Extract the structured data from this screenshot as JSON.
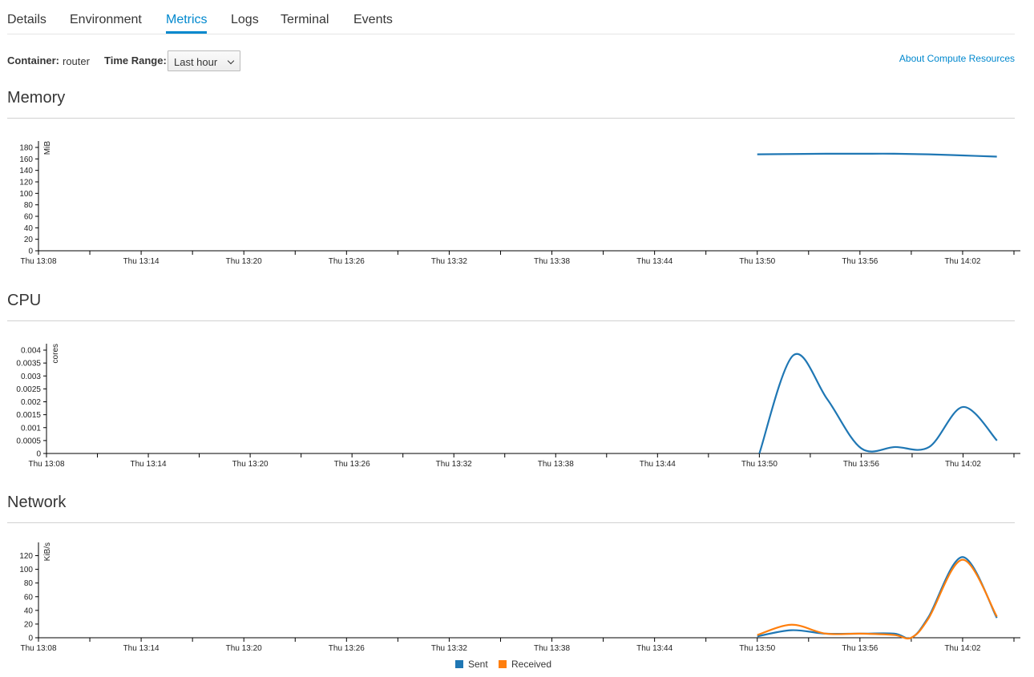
{
  "tabs": [
    {
      "label": "Details",
      "active": false
    },
    {
      "label": "Environment",
      "active": false
    },
    {
      "label": "Metrics",
      "active": true
    },
    {
      "label": "Logs",
      "active": false
    },
    {
      "label": "Terminal",
      "active": false
    },
    {
      "label": "Events",
      "active": false
    }
  ],
  "toolbar": {
    "container_label": "Container:",
    "container_value": "router",
    "time_range_label": "Time Range:",
    "time_range_value": "Last hour",
    "about_link": "About Compute Resources"
  },
  "sections": {
    "memory": {
      "title": "Memory"
    },
    "cpu": {
      "title": "CPU"
    },
    "network": {
      "title": "Network"
    }
  },
  "colors": {
    "accent": "#0088ce",
    "sent": "#1f77b4",
    "received": "#ff7f0e"
  },
  "chart_data": [
    {
      "type": "line",
      "title": "Memory",
      "ylabel": "MiB",
      "ylim": [
        0,
        180
      ],
      "yticks": [
        0,
        20,
        40,
        60,
        80,
        100,
        120,
        140,
        160,
        180
      ],
      "xticks": [
        "Thu 13:08",
        "Thu 13:14",
        "Thu 13:20",
        "Thu 13:26",
        "Thu 13:32",
        "Thu 13:38",
        "Thu 13:44",
        "Thu 13:50",
        "Thu 13:56",
        "Thu 14:02"
      ],
      "xlim": [
        "13:08",
        "14:05"
      ],
      "series": [
        {
          "color": "#1f77b4",
          "x": [
            "13:50",
            "13:52",
            "13:54",
            "13:56",
            "13:58",
            "14:00",
            "14:02",
            "14:04"
          ],
          "y": [
            168,
            168.5,
            169,
            169,
            169,
            168,
            166,
            164
          ]
        }
      ]
    },
    {
      "type": "line",
      "title": "CPU",
      "ylabel": "cores",
      "ylim": [
        0,
        0.004
      ],
      "yticks": [
        "0",
        "0.0005",
        "0.001",
        "0.0015",
        "0.002",
        "0.0025",
        "0.003",
        "0.0035",
        "0.004"
      ],
      "xticks": [
        "Thu 13:08",
        "Thu 13:14",
        "Thu 13:20",
        "Thu 13:26",
        "Thu 13:32",
        "Thu 13:38",
        "Thu 13:44",
        "Thu 13:50",
        "Thu 13:56",
        "Thu 14:02"
      ],
      "xlim": [
        "13:08",
        "14:05"
      ],
      "series": [
        {
          "color": "#1f77b4",
          "x": [
            "13:50",
            "13:52",
            "13:54",
            "13:56",
            "13:58",
            "14:00",
            "14:02",
            "14:04"
          ],
          "y": [
            0,
            0.0038,
            0.0021,
            0.0002,
            0.00025,
            0.00025,
            0.0018,
            0.0005
          ]
        }
      ]
    },
    {
      "type": "line",
      "title": "Network",
      "ylabel": "KiB/s",
      "ylim": [
        0,
        130
      ],
      "yticks": [
        0,
        20,
        40,
        60,
        80,
        100,
        120
      ],
      "xticks": [
        "Thu 13:08",
        "Thu 13:14",
        "Thu 13:20",
        "Thu 13:26",
        "Thu 13:32",
        "Thu 13:38",
        "Thu 13:44",
        "Thu 13:50",
        "Thu 13:56",
        "Thu 14:02"
      ],
      "xlim": [
        "13:08",
        "14:05"
      ],
      "legend": "bottom-center",
      "series": [
        {
          "name": "Sent",
          "color": "#1f77b4",
          "x": [
            "13:50",
            "13:52",
            "13:54",
            "13:56",
            "13:58",
            "13:59",
            "14:00",
            "14:02",
            "14:04"
          ],
          "y": [
            2,
            11,
            6,
            6,
            6,
            0,
            30,
            118,
            29
          ]
        },
        {
          "name": "Received",
          "color": "#ff7f0e",
          "x": [
            "13:50",
            "13:52",
            "13:54",
            "13:56",
            "13:58",
            "13:59",
            "14:00",
            "14:02",
            "14:04"
          ],
          "y": [
            4,
            19,
            6,
            6,
            4,
            0,
            28,
            114,
            31
          ]
        }
      ]
    }
  ]
}
